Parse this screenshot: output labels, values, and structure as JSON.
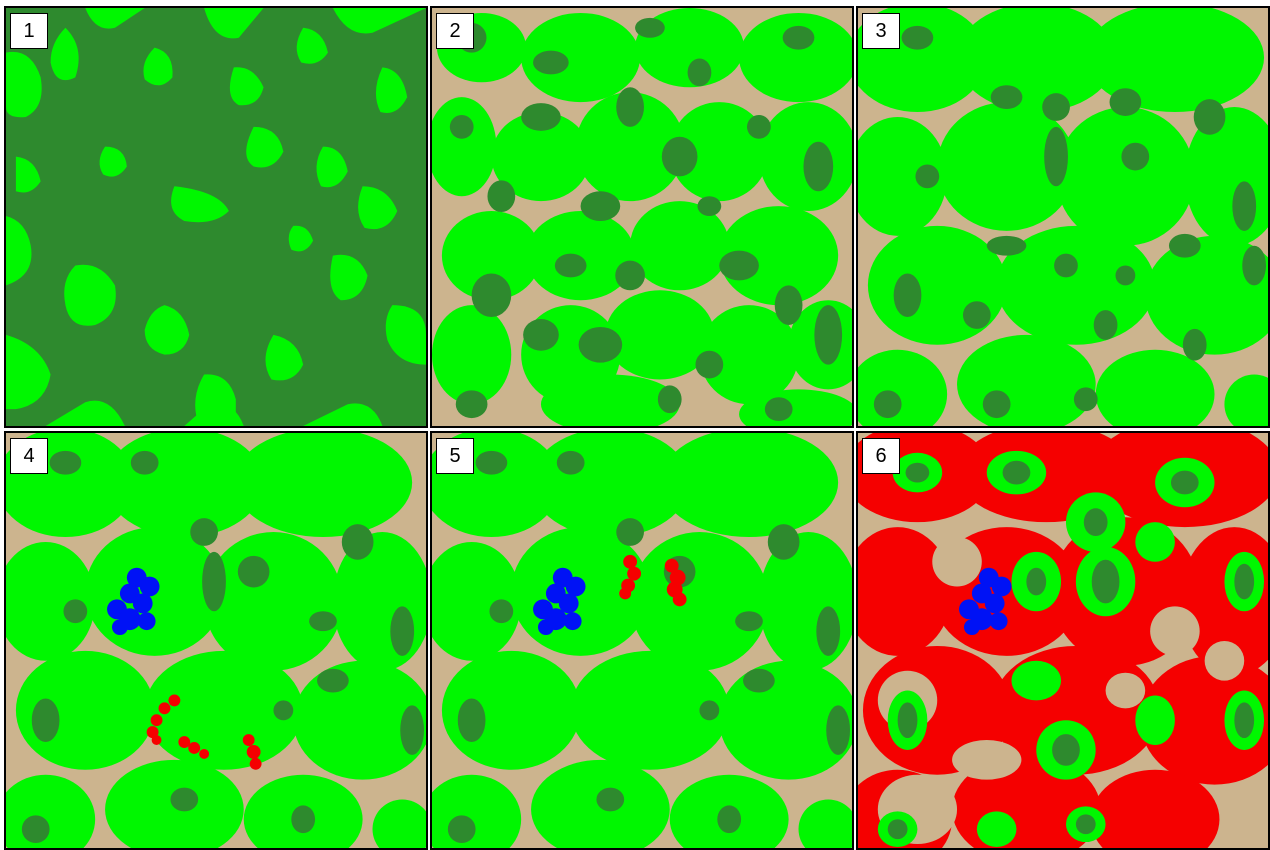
{
  "panels": [
    {
      "label": "1",
      "variant": "dense-forest"
    },
    {
      "label": "2",
      "variant": "patchy-forest"
    },
    {
      "label": "3",
      "variant": "patchy-forest-buffered"
    },
    {
      "label": "4",
      "variant": "blue-and-red-clusters"
    },
    {
      "label": "5",
      "variant": "blue-and-red-clusters-alt"
    },
    {
      "label": "6",
      "variant": "red-edges"
    }
  ],
  "colors": {
    "ground": "#ccb48e",
    "light_green": "#00f700",
    "dark_green": "#2e8a2e",
    "blue": "#0012f5",
    "red": "#f50000",
    "border": "#000000"
  }
}
